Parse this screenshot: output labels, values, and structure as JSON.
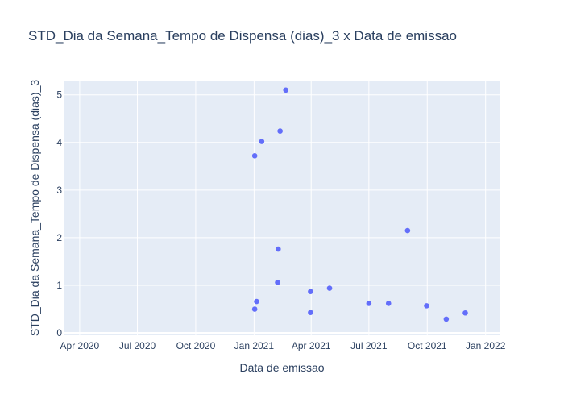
{
  "chart_data": {
    "type": "scatter",
    "title": "STD_Dia da Semana_Tempo de Dispensa (dias)_3 x Data de emissao",
    "xlabel": "Data de emissao",
    "ylabel": "STD_Dia da Semana_Tempo de Dispensa (dias)_3",
    "xlim": [
      "2020-03-08",
      "2022-01-23"
    ],
    "ylim": [
      -0.05,
      5.3
    ],
    "x_ticks": [
      {
        "value": "2020-04-01",
        "label": "Apr 2020"
      },
      {
        "value": "2020-07-01",
        "label": "Jul 2020"
      },
      {
        "value": "2020-10-01",
        "label": "Oct 2020"
      },
      {
        "value": "2021-01-01",
        "label": "Jan 2021"
      },
      {
        "value": "2021-04-01",
        "label": "Apr 2021"
      },
      {
        "value": "2021-07-01",
        "label": "Jul 2021"
      },
      {
        "value": "2021-10-01",
        "label": "Oct 2021"
      },
      {
        "value": "2022-01-01",
        "label": "Jan 2022"
      }
    ],
    "y_ticks": [
      {
        "value": 0,
        "label": "0"
      },
      {
        "value": 1,
        "label": "1"
      },
      {
        "value": 2,
        "label": "2"
      },
      {
        "value": 3,
        "label": "3"
      },
      {
        "value": 4,
        "label": "4"
      },
      {
        "value": 5,
        "label": "5"
      }
    ],
    "grid": true,
    "colors": {
      "plot_bg": "#e5ecf6",
      "grid": "#ffffff",
      "marker": "#636efa",
      "text": "#2a3f5f"
    },
    "x": [
      "2021-01-02",
      "2021-01-02",
      "2021-01-05",
      "2021-01-13",
      "2021-02-07",
      "2021-02-08",
      "2021-02-11",
      "2021-02-20",
      "2021-03-31",
      "2021-03-31",
      "2021-04-30",
      "2021-07-01",
      "2021-08-01",
      "2021-08-31",
      "2021-09-30",
      "2021-10-31",
      "2021-11-30"
    ],
    "y": [
      3.72,
      0.5,
      0.66,
      4.02,
      1.06,
      1.76,
      4.24,
      5.1,
      0.43,
      0.87,
      0.94,
      0.62,
      0.62,
      2.15,
      0.57,
      0.29,
      0.42
    ]
  }
}
